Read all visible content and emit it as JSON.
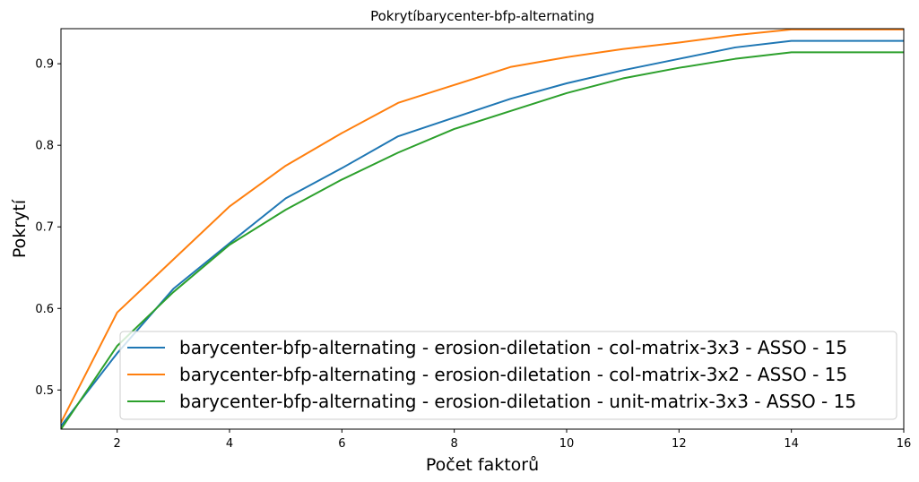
{
  "chart_data": {
    "type": "line",
    "title": "Pokrytíbarycenter-bfp-alternating",
    "xlabel": "Počet faktorů",
    "ylabel": "Pokrytí",
    "xlim": [
      1,
      16
    ],
    "ylim": [
      0.452,
      0.943
    ],
    "xticks": [
      2,
      4,
      6,
      8,
      10,
      12,
      14,
      16
    ],
    "yticks": [
      0.5,
      0.6,
      0.7,
      0.8,
      0.9
    ],
    "ytick_labels": [
      "0.5",
      "0.6",
      "0.7",
      "0.8",
      "0.9"
    ],
    "grid": false,
    "legend_position": "lower-right",
    "series": [
      {
        "name": "barycenter-bfp-alternating - erosion-diletation - col-matrix-3x3 - ASSO - 15",
        "color": "#1f77b4",
        "x": [
          1,
          2,
          3,
          4,
          5,
          6,
          7,
          8,
          9,
          10,
          11,
          12,
          13,
          14,
          15,
          16
        ],
        "y": [
          0.456,
          0.545,
          0.624,
          0.68,
          0.735,
          0.772,
          0.811,
          0.834,
          0.857,
          0.876,
          0.892,
          0.906,
          0.92,
          0.928,
          0.928,
          0.928
        ]
      },
      {
        "name": "barycenter-bfp-alternating - erosion-diletation - col-matrix-3x2 - ASSO - 15",
        "color": "#ff7f0e",
        "x": [
          1,
          2,
          3,
          4,
          5,
          6,
          7,
          8,
          9,
          10,
          11,
          12,
          13,
          14,
          15,
          16
        ],
        "y": [
          0.46,
          0.595,
          0.66,
          0.725,
          0.775,
          0.815,
          0.852,
          0.874,
          0.896,
          0.908,
          0.918,
          0.926,
          0.935,
          0.942,
          0.942,
          0.942
        ]
      },
      {
        "name": "barycenter-bfp-alternating - erosion-diletation - unit-matrix-3x3 - ASSO - 15",
        "color": "#2ca02c",
        "x": [
          1,
          2,
          3,
          4,
          5,
          6,
          7,
          8,
          9,
          10,
          11,
          12,
          13,
          14,
          15,
          16
        ],
        "y": [
          0.452,
          0.554,
          0.62,
          0.678,
          0.721,
          0.758,
          0.791,
          0.82,
          0.842,
          0.864,
          0.882,
          0.895,
          0.906,
          0.914,
          0.914,
          0.914
        ]
      }
    ]
  }
}
